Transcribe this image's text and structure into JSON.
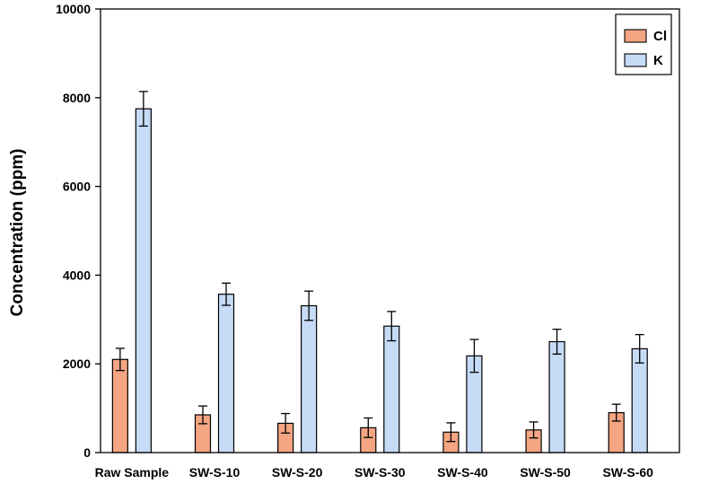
{
  "chart_data": {
    "type": "bar",
    "categories": [
      "Raw Sample",
      "SW-S-10",
      "SW-S-20",
      "SW-S-30",
      "SW-S-40",
      "SW-S-50",
      "SW-S-60"
    ],
    "series": [
      {
        "name": "Cl",
        "color": "#f4a582",
        "values": [
          2100,
          850,
          660,
          560,
          460,
          510,
          900
        ],
        "errors": [
          250,
          200,
          220,
          220,
          210,
          180,
          190
        ]
      },
      {
        "name": "K",
        "color": "#c6dbf5",
        "values": [
          7750,
          3570,
          3310,
          2850,
          2180,
          2500,
          2340
        ],
        "errors": [
          390,
          250,
          330,
          330,
          370,
          280,
          320
        ]
      }
    ],
    "ylabel": "Concentration (ppm)",
    "xlabel": "",
    "ylim": [
      0,
      10000
    ],
    "yticks": [
      0,
      2000,
      4000,
      6000,
      8000,
      10000
    ],
    "legend_position": "top-right",
    "grid": false
  }
}
